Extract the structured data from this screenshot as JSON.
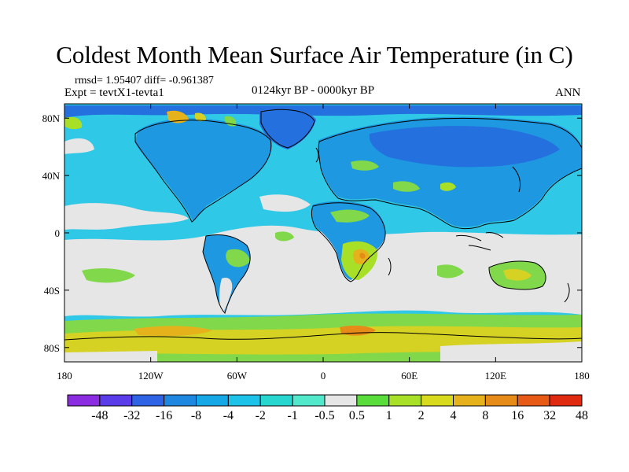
{
  "title": "Coldest Month Mean Surface Air Temperature (in C)",
  "stats": "rmsd= 1.95407  diff= -0.961387",
  "experiment": "Expt = tevtX1-tevta1",
  "period": "0124kyr BP - 0000kyr BP",
  "season": "ANN",
  "axes": {
    "lat_ticks": [
      {
        "value": 80,
        "label": "80N"
      },
      {
        "value": 40,
        "label": "40N"
      },
      {
        "value": 0,
        "label": "0"
      },
      {
        "value": -40,
        "label": "40S"
      },
      {
        "value": -80,
        "label": "80S"
      }
    ],
    "lon_ticks": [
      {
        "value": -180,
        "label": "180"
      },
      {
        "value": -120,
        "label": "120W"
      },
      {
        "value": -60,
        "label": "60W"
      },
      {
        "value": 0,
        "label": "0"
      },
      {
        "value": 60,
        "label": "60E"
      },
      {
        "value": 120,
        "label": "120E"
      },
      {
        "value": 180,
        "label": "180"
      }
    ],
    "lon_range": [
      -180,
      180
    ],
    "lat_range": [
      -90,
      90
    ]
  },
  "colorbar": {
    "labels": [
      "-48",
      "-32",
      "-16",
      "-8",
      "-4",
      "-2",
      "-1",
      "-0.5",
      "0.5",
      "1",
      "2",
      "4",
      "8",
      "16",
      "32",
      "48"
    ],
    "colors": [
      "#8c2ce0",
      "#5a3ce8",
      "#2e63e6",
      "#1e88e0",
      "#16a8e6",
      "#1cc2e8",
      "#28d6d0",
      "#52e8cc",
      "#e6e6e6",
      "#58dd3a",
      "#a8e028",
      "#d8da1e",
      "#e6b21c",
      "#e68a18",
      "#e65a16",
      "#e02a10"
    ]
  },
  "colors": {
    "background_ocean": "#2fc8e6",
    "neutral": "#e6e6e6",
    "land_cool": "#1e98e0",
    "land_cold": "#2470de",
    "warm_green": "#80d84a",
    "warm_yellow": "#d6d224",
    "warm_orange": "#e69a1c",
    "coastline": "#000000"
  }
}
